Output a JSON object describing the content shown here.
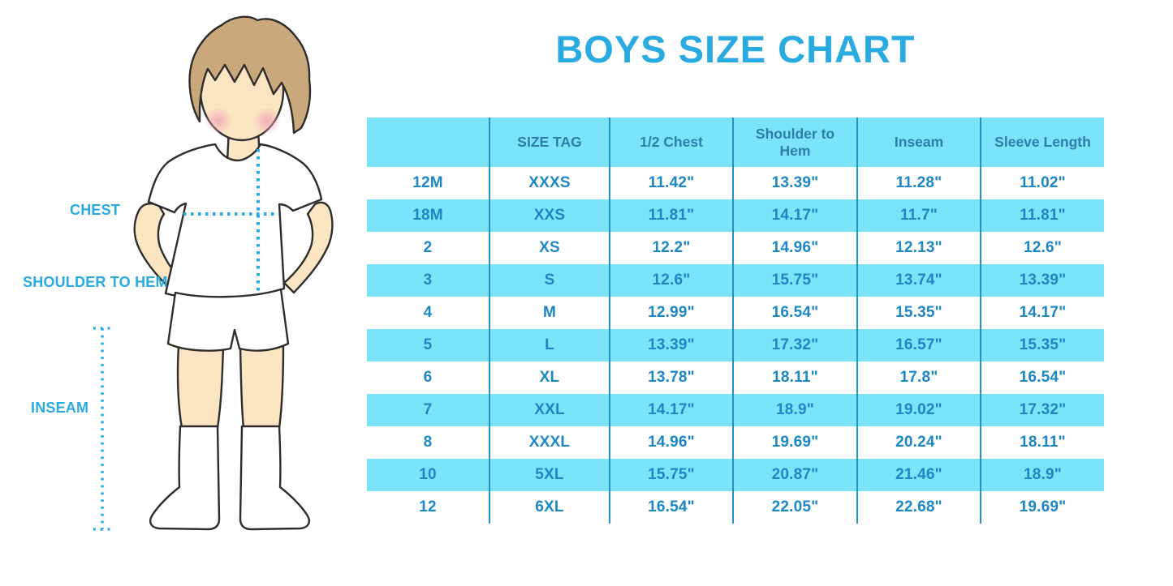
{
  "title": "BOYS SIZE CHART",
  "colors": {
    "accent": "#29ABE2",
    "stripe": "#7BE3FA",
    "grid_line": "#1F93C5",
    "header_text": "#2A7FAB",
    "cell_text": "#1C87C5",
    "skin": "#FBE5C3",
    "hair": "#C9A87B",
    "blush": "#F1A7B9",
    "outline": "#2F2D2B"
  },
  "figure": {
    "description": "illustration of a boy in a white t-shirt, white shorts and knee socks with dotted measurement guides",
    "labels": {
      "chest": "CHEST",
      "shoulder_to_hem": "SHOULDER TO HEM",
      "inseam": "INSEAM"
    }
  },
  "chart_data": {
    "type": "table",
    "title": "BOYS SIZE CHART",
    "columns": [
      "",
      "SIZE TAG",
      "1/2 Chest",
      "Shoulder to Hem",
      "Inseam",
      "Sleeve Length"
    ],
    "rows": [
      [
        "12M",
        "XXXS",
        "11.42\"",
        "13.39\"",
        "11.28\"",
        "11.02\""
      ],
      [
        "18M",
        "XXS",
        "11.81\"",
        "14.17\"",
        "11.7\"",
        "11.81\""
      ],
      [
        "2",
        "XS",
        "12.2\"",
        "14.96\"",
        "12.13\"",
        "12.6\""
      ],
      [
        "3",
        "S",
        "12.6\"",
        "15.75\"",
        "13.74\"",
        "13.39\""
      ],
      [
        "4",
        "M",
        "12.99\"",
        "16.54\"",
        "15.35\"",
        "14.17\""
      ],
      [
        "5",
        "L",
        "13.39\"",
        "17.32\"",
        "16.57\"",
        "15.35\""
      ],
      [
        "6",
        "XL",
        "13.78\"",
        "18.11\"",
        "17.8\"",
        "16.54\""
      ],
      [
        "7",
        "XXL",
        "14.17\"",
        "18.9\"",
        "19.02\"",
        "17.32\""
      ],
      [
        "8",
        "XXXL",
        "14.96\"",
        "19.69\"",
        "20.24\"",
        "18.11\""
      ],
      [
        "10",
        "5XL",
        "15.75\"",
        "20.87\"",
        "21.46\"",
        "18.9\""
      ],
      [
        "12",
        "6XL",
        "16.54\"",
        "22.05\"",
        "22.68\"",
        "19.69\""
      ]
    ],
    "units": "inches",
    "grid": "vertical column separators only",
    "stripe_pattern": "alternating rows highlighted light cyan starting with second body row",
    "legend_position": "none"
  }
}
